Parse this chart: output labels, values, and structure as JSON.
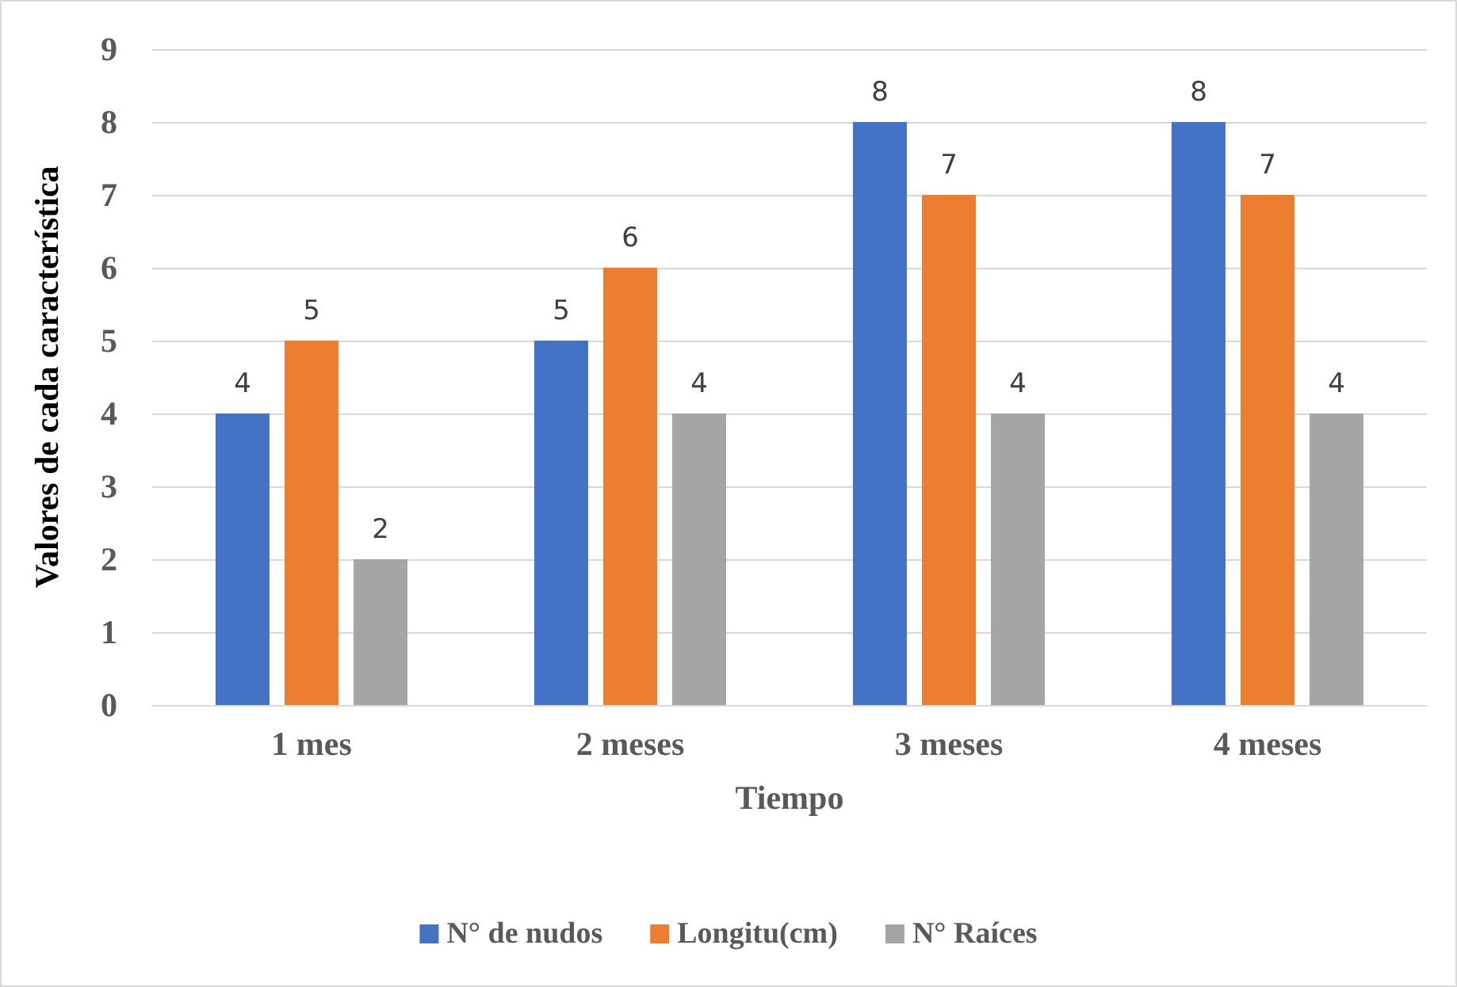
{
  "chart_data": {
    "type": "bar",
    "xlabel": "Tiempo",
    "ylabel": "Valores de cada característica",
    "categories": [
      "1 mes",
      "2 meses",
      "3 meses",
      "4 meses"
    ],
    "series": [
      {
        "name": "N° de nudos",
        "color": "#4472c4",
        "values": [
          4,
          5,
          8,
          8
        ]
      },
      {
        "name": "Longitu(cm)",
        "color": "#ed7d31",
        "values": [
          5,
          6,
          7,
          7
        ]
      },
      {
        "name": "N° Raíces",
        "color": "#a5a5a5",
        "values": [
          2,
          4,
          4,
          4
        ]
      }
    ],
    "ylim": [
      0,
      9
    ],
    "yticks": [
      0,
      1,
      2,
      3,
      4,
      5,
      6,
      7,
      8,
      9
    ],
    "grid": "y",
    "legend": "bottom",
    "data_labels": true
  }
}
